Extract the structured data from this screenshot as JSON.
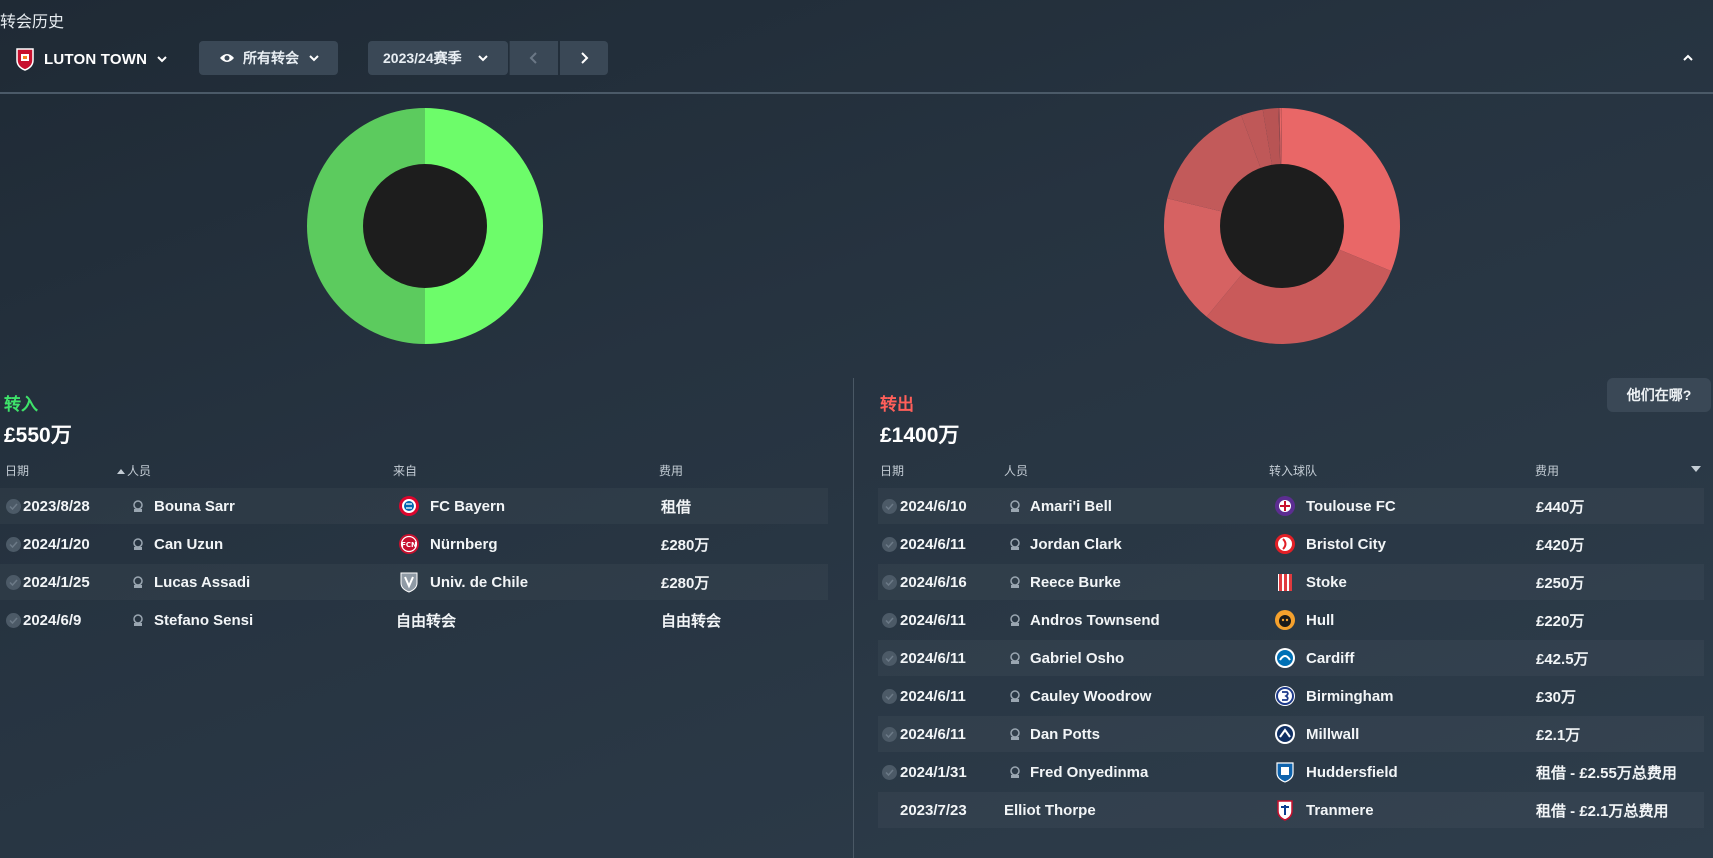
{
  "page_title": "转会历史",
  "toolbar": {
    "club_name": "LUTON TOWN",
    "filter_label": "所有转会",
    "season_label": "2023/24赛季"
  },
  "colors": {
    "in": "#3ee36a",
    "out": "#ff5f5a",
    "donut_in": [
      "#6dfc6a",
      "#5ccb5e"
    ],
    "donut_out": [
      "#e96767",
      "#c95a5a",
      "#d66262",
      "#c25a5a",
      "#bf5858",
      "#b85454",
      "#9e4c50"
    ]
  },
  "transfers_in": {
    "label": "转入",
    "total": "£550万",
    "columns": {
      "date": "日期",
      "person": "人员",
      "from": "来自",
      "fee": "费用"
    },
    "rows": [
      {
        "date": "2023/8/28",
        "name": "Bouna Sarr",
        "club": "FC Bayern",
        "club_icon": "fc-bayern-crest-icon",
        "fee": "租借"
      },
      {
        "date": "2024/1/20",
        "name": "Can Uzun",
        "club": "Nürnberg",
        "club_icon": "nurnberg-crest-icon",
        "fee": "£280万"
      },
      {
        "date": "2024/1/25",
        "name": "Lucas Assadi",
        "club": "Univ. de Chile",
        "club_icon": "univ-de-chile-crest-icon",
        "fee": "£280万"
      },
      {
        "date": "2024/6/9",
        "name": "Stefano Sensi",
        "club": "自由转会",
        "club_icon": "",
        "fee": "自由转会"
      }
    ]
  },
  "transfers_out": {
    "label": "转出",
    "total": "£1400万",
    "columns": {
      "date": "日期",
      "person": "人员",
      "to": "转入球队",
      "fee": "费用"
    },
    "rows": [
      {
        "date": "2024/6/10",
        "name": "Amari'i Bell",
        "club": "Toulouse FC",
        "club_icon": "toulouse-crest-icon",
        "fee": "£440万"
      },
      {
        "date": "2024/6/11",
        "name": "Jordan Clark",
        "club": "Bristol City",
        "club_icon": "bristol-city-crest-icon",
        "fee": "£420万"
      },
      {
        "date": "2024/6/16",
        "name": "Reece Burke",
        "club": "Stoke",
        "club_icon": "stoke-crest-icon",
        "fee": "£250万"
      },
      {
        "date": "2024/6/11",
        "name": "Andros Townsend",
        "club": "Hull",
        "club_icon": "hull-crest-icon",
        "fee": "£220万"
      },
      {
        "date": "2024/6/11",
        "name": "Gabriel Osho",
        "club": "Cardiff",
        "club_icon": "cardiff-crest-icon",
        "fee": "£42.5万"
      },
      {
        "date": "2024/6/11",
        "name": "Cauley Woodrow",
        "club": "Birmingham",
        "club_icon": "birmingham-crest-icon",
        "fee": "£30万"
      },
      {
        "date": "2024/6/11",
        "name": "Dan Potts",
        "club": "Millwall",
        "club_icon": "millwall-crest-icon",
        "fee": "£2.1万"
      },
      {
        "date": "2024/1/31",
        "name": "Fred Onyedinma",
        "club": "Huddersfield",
        "club_icon": "huddersfield-crest-icon",
        "fee": "租借 - £2.55万总费用"
      },
      {
        "date": "2023/7/23",
        "name": "Elliot Thorpe",
        "club": "Tranmere",
        "club_icon": "tranmere-crest-icon",
        "fee": "租借 - £2.1万总费用"
      }
    ]
  },
  "chart_data": [
    {
      "type": "pie",
      "categories": [
        "Can Uzun",
        "Lucas Assadi"
      ],
      "values": [
        280,
        280
      ]
    },
    {
      "type": "pie",
      "categories": [
        "Amari'i Bell",
        "Jordan Clark",
        "Reece Burke",
        "Andros Townsend",
        "Gabriel Osho",
        "Cauley Woodrow",
        "Dan Potts",
        "Fred Onyedinma",
        "Elliot Thorpe"
      ],
      "values": [
        440,
        420,
        250,
        220,
        42.5,
        30,
        2.1,
        2.55,
        2.1
      ]
    }
  ],
  "where_button": "他们在哪?"
}
